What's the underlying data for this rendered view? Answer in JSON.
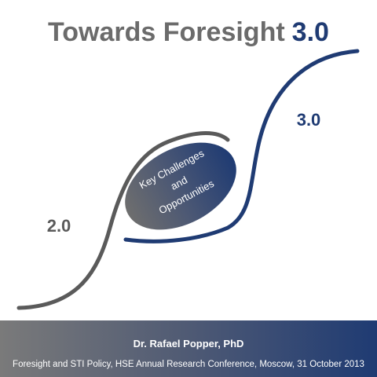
{
  "title": {
    "text": "Towards Foresight",
    "highlight": "3.0"
  },
  "stages": {
    "from": "2.0",
    "to": "3.0"
  },
  "bubble": {
    "lines": [
      "Key Challenges",
      "and",
      "Opportunities"
    ]
  },
  "footer": {
    "author": "Dr. Rafael Popper, PhD",
    "event": "Foresight and STI Policy, HSE Annual Research Conference, Moscow, 31 October 2013"
  }
}
